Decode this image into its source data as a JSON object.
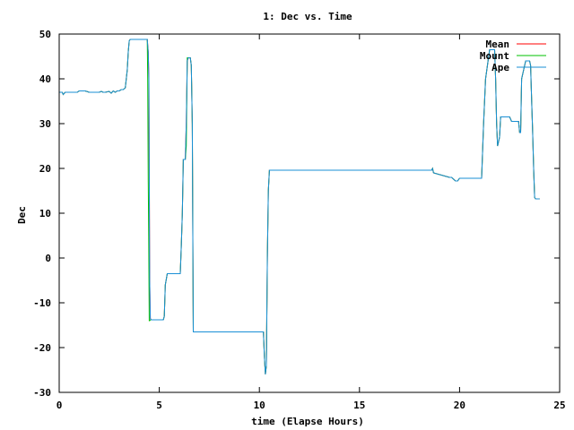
{
  "chart_data": {
    "type": "line",
    "title": "1: Dec vs. Time",
    "xlabel": "time (Elapse Hours)",
    "ylabel": "Dec",
    "xlim": [
      0,
      25
    ],
    "ylim": [
      -30,
      50
    ],
    "xticks": [
      0,
      5,
      10,
      15,
      20,
      25
    ],
    "yticks": [
      -30,
      -20,
      -10,
      0,
      10,
      20,
      30,
      40,
      50
    ],
    "grid": false,
    "legend_position": "top-right",
    "series": [
      {
        "name": "Mean",
        "color": "#ff0000",
        "x": [
          0,
          0.15,
          0.2,
          0.3,
          0.4,
          0.6,
          0.9,
          1.0,
          1.3,
          1.5,
          1.8,
          2.0,
          2.1,
          2.2,
          2.3,
          2.5,
          2.6,
          2.7,
          2.8,
          2.9,
          3.0,
          3.1,
          3.2,
          3.3,
          3.4,
          3.45,
          3.5,
          3.55,
          3.6,
          4.4,
          4.45,
          4.48,
          4.5,
          4.52,
          4.55,
          4.6,
          4.65,
          5.2,
          5.25,
          5.3,
          5.4,
          6.0,
          6.05,
          6.1,
          6.15,
          6.2,
          6.3,
          6.35,
          6.4,
          6.45,
          6.5,
          6.55,
          6.6,
          6.65,
          6.7,
          6.8,
          7.0,
          9.0,
          10.0,
          10.2,
          10.25,
          10.3,
          10.35,
          10.4,
          10.45,
          10.5,
          10.55,
          11.0,
          11.8,
          12.0,
          18.4,
          18.5,
          18.6,
          18.65,
          18.7,
          19.5,
          19.6,
          19.8,
          19.9,
          20.0,
          21.0,
          21.05,
          21.1,
          21.2,
          21.3,
          21.5,
          21.7,
          21.75,
          21.8,
          21.85,
          21.9,
          22.0,
          22.05,
          22.1,
          22.3,
          22.5,
          22.6,
          22.9,
          22.95,
          23.0,
          23.05,
          23.1,
          23.3,
          23.5,
          23.55,
          23.6,
          23.65,
          23.7,
          23.75,
          23.8,
          24.0
        ],
        "y": [
          37,
          37,
          36.5,
          37,
          37,
          37,
          37,
          37.3,
          37.3,
          37,
          37,
          37,
          37.2,
          37,
          37,
          37.2,
          36.8,
          37.3,
          37,
          37.3,
          37.3,
          37.6,
          37.6,
          38,
          42,
          46,
          48.5,
          48.8,
          48.8,
          48.8,
          46,
          40,
          20,
          -5,
          -13.5,
          -13.8,
          -13.8,
          -13.8,
          -13,
          -6,
          -3.5,
          -3.5,
          -3.5,
          3,
          10,
          22,
          22,
          30,
          44,
          44.7,
          44.7,
          44.7,
          43,
          30,
          -16.5,
          -16.5,
          -16.5,
          -16.5,
          -16.5,
          -16.5,
          -22,
          -26,
          -24,
          0,
          15,
          19.6,
          19.6,
          19.6,
          19.6,
          19.6,
          19.6,
          19.6,
          19.6,
          20,
          19,
          18,
          18,
          17.2,
          17.2,
          17.8,
          17.8,
          17.8,
          17.8,
          30,
          40,
          46.5,
          46.5,
          46.5,
          40,
          30,
          25,
          27,
          31.5,
          31.5,
          31.5,
          31.5,
          30.5,
          30.5,
          30.5,
          28,
          28,
          40,
          44,
          44,
          43,
          35,
          28,
          20,
          13.5,
          13.2,
          13.2
        ]
      },
      {
        "name": "Mount",
        "color": "#00c000",
        "x": [
          0,
          0.15,
          0.2,
          0.3,
          0.4,
          0.6,
          0.9,
          1.0,
          1.3,
          1.5,
          1.8,
          2.0,
          2.1,
          2.2,
          2.3,
          2.5,
          2.6,
          2.7,
          2.8,
          2.9,
          3.0,
          3.1,
          3.2,
          3.3,
          3.4,
          3.45,
          3.5,
          3.55,
          3.6,
          4.4,
          4.42,
          4.45,
          4.47,
          4.5,
          4.52,
          4.55,
          4.6,
          4.65,
          5.2,
          5.25,
          5.3,
          5.4,
          6.0,
          6.05,
          6.1,
          6.15,
          6.2,
          6.3,
          6.35,
          6.4,
          6.45,
          6.5,
          6.55,
          6.6,
          6.65,
          6.7,
          6.8,
          7.0,
          9.0,
          10.0,
          10.2,
          10.25,
          10.3,
          10.35,
          10.4,
          10.45,
          10.5,
          10.55,
          11.0,
          11.8,
          12.0,
          18.4,
          18.5,
          18.6,
          18.65,
          18.7,
          19.5,
          19.6,
          19.8,
          19.9,
          20.0,
          21.0,
          21.05,
          21.1,
          21.2,
          21.3,
          21.5,
          21.7,
          21.75,
          21.8,
          21.85,
          21.9,
          22.0,
          22.05,
          22.1,
          22.3,
          22.5,
          22.6,
          22.9,
          22.95,
          23.0,
          23.05,
          23.1,
          23.3,
          23.5,
          23.55,
          23.6,
          23.65,
          23.7,
          23.75,
          23.8,
          24.0
        ],
        "y": [
          37,
          37,
          36.5,
          37,
          37,
          37,
          37,
          37.3,
          37.3,
          37,
          37,
          37,
          37.2,
          37,
          37,
          37.2,
          36.8,
          37.3,
          37,
          37.3,
          37.3,
          37.6,
          37.6,
          38,
          42,
          46,
          48.5,
          48.8,
          48.8,
          48.8,
          40,
          17,
          5,
          -14,
          -14,
          -13.8,
          -13.8,
          -13.8,
          -13.8,
          -13,
          -6,
          -3.5,
          -3.5,
          -3.5,
          3,
          10,
          22,
          22,
          25,
          44.7,
          44.7,
          44.7,
          44.7,
          43,
          30,
          -16.5,
          -16.5,
          -16.5,
          -16.5,
          -16.5,
          -16.5,
          -22,
          -26,
          -24,
          0,
          15,
          19.6,
          19.6,
          19.6,
          19.6,
          19.6,
          19.6,
          19.6,
          19.6,
          20,
          19,
          18,
          18,
          17.2,
          17.2,
          17.8,
          17.8,
          17.8,
          17.8,
          30,
          40,
          46.5,
          46.5,
          46.5,
          40,
          30,
          25,
          27,
          31.5,
          31.5,
          31.5,
          31.5,
          30.5,
          30.5,
          30.5,
          28,
          28,
          40,
          44,
          44,
          43,
          35,
          28,
          20,
          13.5,
          13.2,
          13.2
        ]
      },
      {
        "name": "Ape",
        "color": "#1a8fd6",
        "x": [
          0,
          0.15,
          0.2,
          0.3,
          0.4,
          0.6,
          0.9,
          1.0,
          1.3,
          1.5,
          1.8,
          2.0,
          2.1,
          2.2,
          2.3,
          2.5,
          2.6,
          2.7,
          2.8,
          2.9,
          3.0,
          3.1,
          3.2,
          3.3,
          3.4,
          3.45,
          3.5,
          3.55,
          3.6,
          4.4,
          4.45,
          4.48,
          4.5,
          4.52,
          4.55,
          4.6,
          4.65,
          5.2,
          5.25,
          5.3,
          5.4,
          6.0,
          6.05,
          6.1,
          6.15,
          6.2,
          6.3,
          6.35,
          6.4,
          6.45,
          6.5,
          6.55,
          6.6,
          6.65,
          6.7,
          6.8,
          7.0,
          9.0,
          10.0,
          10.2,
          10.25,
          10.3,
          10.35,
          10.4,
          10.45,
          10.5,
          10.55,
          11.0,
          11.8,
          12.0,
          18.4,
          18.5,
          18.6,
          18.65,
          18.7,
          19.5,
          19.6,
          19.8,
          19.9,
          20.0,
          21.0,
          21.05,
          21.1,
          21.2,
          21.3,
          21.5,
          21.7,
          21.75,
          21.8,
          21.85,
          21.9,
          22.0,
          22.05,
          22.1,
          22.3,
          22.5,
          22.6,
          22.9,
          22.95,
          23.0,
          23.05,
          23.1,
          23.3,
          23.5,
          23.55,
          23.6,
          23.65,
          23.7,
          23.75,
          23.8,
          24.0
        ],
        "y": [
          37,
          37,
          36.5,
          37,
          37,
          37,
          37,
          37.3,
          37.3,
          37,
          37,
          37,
          37.2,
          37,
          37,
          37.2,
          36.8,
          37.3,
          37,
          37.3,
          37.3,
          37.6,
          37.6,
          38,
          42,
          46,
          48.5,
          48.8,
          48.8,
          48.8,
          46,
          40,
          20,
          -5,
          -13.5,
          -13.8,
          -13.8,
          -13.8,
          -13,
          -6,
          -3.5,
          -3.5,
          -3.5,
          3,
          10,
          22,
          22,
          30,
          44,
          44.7,
          44.7,
          44.7,
          43,
          30,
          -16.5,
          -16.5,
          -16.5,
          -16.5,
          -16.5,
          -16.5,
          -22,
          -26,
          -24,
          0,
          15,
          19.6,
          19.6,
          19.6,
          19.6,
          19.6,
          19.6,
          19.6,
          19.6,
          20,
          19,
          18,
          18,
          17.2,
          17.2,
          17.8,
          17.8,
          17.8,
          17.8,
          30,
          40,
          46.5,
          46.5,
          46.5,
          40,
          30,
          25,
          27,
          31.5,
          31.5,
          31.5,
          31.5,
          30.5,
          30.5,
          30.5,
          28,
          28,
          40,
          44,
          44,
          43,
          35,
          28,
          20,
          13.5,
          13.2,
          13.2
        ]
      }
    ]
  }
}
